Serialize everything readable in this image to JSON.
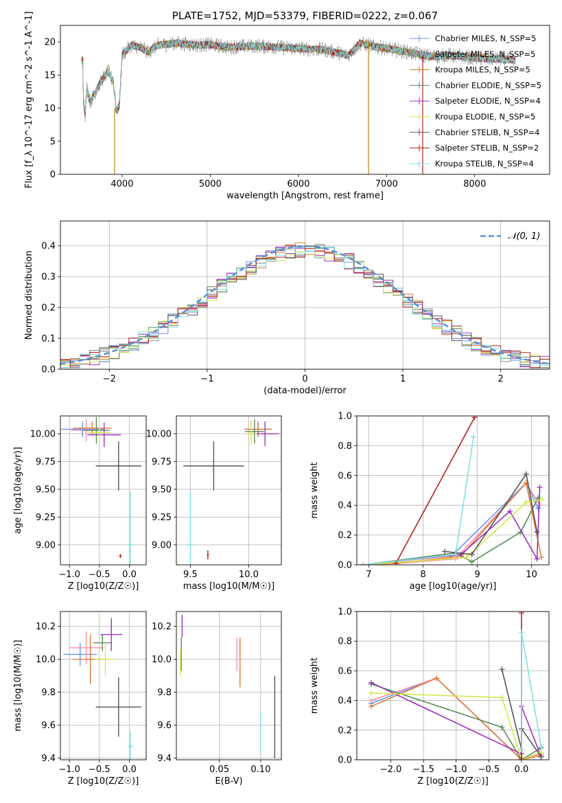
{
  "chart_data": [
    {
      "type": "line",
      "title": "PLATE=1752, MJD=53379, FIBERID=0222, z=0.067",
      "xlabel": "wavelength [Angstrom, rest frame]",
      "ylabel": "Flux [f_λ 10^-17 erg cm^-2 s^-1 A^-1]",
      "xlim": [
        3300,
        8850
      ],
      "ylim": [
        0,
        22.5
      ],
      "xticks": [
        "4000",
        "5000",
        "6000",
        "7000",
        "8000"
      ],
      "yticks": [
        "0",
        "5",
        "10",
        "15",
        "20"
      ],
      "grid": false,
      "legend_position": "right",
      "series": [
        {
          "name": "Chabrier MILES, N_SSP=5",
          "color": "#6495ed"
        },
        {
          "name": "Salpeter MILES, N_SSP=5",
          "color": "#8b8b8b"
        },
        {
          "name": "Kroupa MILES, N_SSP=5",
          "color": "#b8860b"
        },
        {
          "name": "Chabrier ELODIE, N_SSP=5",
          "color": "#5a8a5a"
        },
        {
          "name": "Salpeter ELODIE, N_SSP=4",
          "color": "#9b30c0"
        },
        {
          "name": "Kroupa ELODIE, N_SSP=5",
          "color": "#d4e84a"
        },
        {
          "name": "Chabrier STELIB, N_SSP=4",
          "color": "#555555"
        },
        {
          "name": "Salpeter STELIB, N_SSP=2",
          "color": "#b22222"
        },
        {
          "name": "Kroupa STELIB, N_SSP=4",
          "color": "#7fdfe0"
        }
      ],
      "envelope": [
        {
          "x": 3560,
          "y": 11.5
        },
        {
          "x": 3580,
          "y": 9
        },
        {
          "x": 3600,
          "y": 13
        },
        {
          "x": 3640,
          "y": 11
        },
        {
          "x": 3700,
          "y": 12.5
        },
        {
          "x": 3760,
          "y": 14
        },
        {
          "x": 3840,
          "y": 15.5
        },
        {
          "x": 3900,
          "y": 14
        },
        {
          "x": 3935,
          "y": 9.5
        },
        {
          "x": 3970,
          "y": 10.5
        },
        {
          "x": 4000,
          "y": 18
        },
        {
          "x": 4100,
          "y": 19.5
        },
        {
          "x": 4200,
          "y": 19.2
        },
        {
          "x": 4300,
          "y": 18.5
        },
        {
          "x": 4400,
          "y": 19.5
        },
        {
          "x": 4600,
          "y": 19.8
        },
        {
          "x": 4860,
          "y": 19.5
        },
        {
          "x": 5000,
          "y": 19.6
        },
        {
          "x": 5200,
          "y": 19.2
        },
        {
          "x": 5500,
          "y": 19.4
        },
        {
          "x": 5800,
          "y": 19.2
        },
        {
          "x": 6000,
          "y": 19.0
        },
        {
          "x": 6300,
          "y": 18.8
        },
        {
          "x": 6563,
          "y": 18.0
        },
        {
          "x": 6700,
          "y": 19.8
        },
        {
          "x": 6900,
          "y": 19.2
        },
        {
          "x": 7100,
          "y": 18.8
        },
        {
          "x": 7300,
          "y": 18.3
        },
        {
          "x": 7500,
          "y": 17.8
        },
        {
          "x": 7700,
          "y": 18.0
        },
        {
          "x": 7900,
          "y": 17.7
        },
        {
          "x": 8100,
          "y": 17.5
        },
        {
          "x": 8300,
          "y": 17.4
        },
        {
          "x": 8450,
          "y": 17.2
        }
      ],
      "spikes": [
        {
          "x": 3915,
          "ymin": 0,
          "ymax": 10,
          "color": "#b8860b"
        },
        {
          "x": 6795,
          "ymin": 0,
          "ymax": 20,
          "color": "#b8860b"
        },
        {
          "x": 7410,
          "ymin": 0,
          "ymax": 18,
          "color": "#b22222"
        }
      ]
    },
    {
      "type": "line",
      "xlabel": "(data-model)/error",
      "ylabel": "Normed distribution",
      "xlim": [
        -2.5,
        2.5
      ],
      "ylim": [
        0,
        0.48
      ],
      "xticks": [
        "−2",
        "−1",
        "0",
        "1",
        "2"
      ],
      "yticks": [
        "0.0",
        "0.1",
        "0.2",
        "0.3",
        "0.4"
      ],
      "grid": true,
      "legend": "𝒩(0, 1)",
      "legend_position": "top-right",
      "reference_curve": {
        "name": "𝒩(0, 1)",
        "mean": 0,
        "sigma": 1,
        "color": "#5b8bd9"
      },
      "bin_width": 0.1,
      "histogram_colors": [
        "#6495ed",
        "#8b8b8b",
        "#e07a3a",
        "#5a8a5a",
        "#9b30c0",
        "#d4e84a",
        "#555555",
        "#b22222",
        "#7fdfe0"
      ]
    },
    {
      "type": "scatter",
      "xlabel": "Z [log10(Z/Z☉)]",
      "ylabel": "age  [log10(age/yr)]",
      "xlim": [
        -1.15,
        0.28
      ],
      "ylim": [
        8.82,
        10.16
      ],
      "xticks": [
        "−1.0",
        "−0.5",
        "0.0"
      ],
      "yticks": [
        "9.00",
        "9.25",
        "9.50",
        "9.75",
        "10.00"
      ],
      "grid": true,
      "errorbars": [
        {
          "x": -0.78,
          "xerr": 0.35,
          "y": 10.04,
          "yerr": 0.07,
          "color": "#6495ed"
        },
        {
          "x": -0.72,
          "xerr": 0.25,
          "y": 10.03,
          "yerr": 0.1,
          "color": "#ff8fa8"
        },
        {
          "x": -0.62,
          "xerr": 0.32,
          "y": 10.05,
          "yerr": 0.06,
          "color": "#e07a3a"
        },
        {
          "x": -0.55,
          "xerr": 0.22,
          "y": 10.03,
          "yerr": 0.12,
          "color": "#5a8a5a"
        },
        {
          "x": -0.42,
          "xerr": 0.28,
          "y": 9.99,
          "yerr": 0.11,
          "color": "#9b30c0"
        },
        {
          "x": -0.5,
          "xerr": 0.18,
          "y": 10.01,
          "yerr": 0.08,
          "color": "#d4e84a"
        },
        {
          "x": -0.18,
          "xerr": 0.38,
          "y": 9.71,
          "yerr": 0.22,
          "color": "#555555"
        },
        {
          "x": -0.15,
          "xerr": 0.02,
          "y": 8.9,
          "yerr": 0.02,
          "color": "#b22222"
        },
        {
          "x": 0.02,
          "xerr": 0.05,
          "y": 9.0,
          "yerr": 0.48,
          "color": "#7fdfe0"
        }
      ]
    },
    {
      "type": "scatter",
      "xlabel": "mass [log10(M/M☉)]",
      "ylabel": "",
      "xlim": [
        9.38,
        10.28
      ],
      "ylim": [
        8.82,
        10.16
      ],
      "xticks": [
        "9.5",
        "10.0"
      ],
      "yticks": [
        "9.00",
        "9.25",
        "9.50",
        "9.75",
        "10.00"
      ],
      "grid": true,
      "errorbars": [
        {
          "x": 10.08,
          "xerr": 0.1,
          "y": 10.04,
          "yerr": 0.07,
          "color": "#6495ed"
        },
        {
          "x": 10.02,
          "xerr": 0.05,
          "y": 10.02,
          "yerr": 0.1,
          "color": "#ff8fa8"
        },
        {
          "x": 10.08,
          "xerr": 0.12,
          "y": 10.04,
          "yerr": 0.06,
          "color": "#e07a3a"
        },
        {
          "x": 10.05,
          "xerr": 0.08,
          "y": 10.02,
          "yerr": 0.11,
          "color": "#5a8a5a"
        },
        {
          "x": 10.14,
          "xerr": 0.12,
          "y": 10.0,
          "yerr": 0.11,
          "color": "#9b30c0"
        },
        {
          "x": 10.02,
          "xerr": 0.05,
          "y": 10.0,
          "yerr": 0.1,
          "color": "#d4e84a"
        },
        {
          "x": 9.7,
          "xerr": 0.26,
          "y": 9.71,
          "yerr": 0.22,
          "color": "#555555"
        },
        {
          "x": 9.65,
          "xerr": 0.01,
          "y": 8.91,
          "yerr": 0.04,
          "color": "#b22222"
        },
        {
          "x": 9.5,
          "xerr": 0.03,
          "y": 9.0,
          "yerr": 0.48,
          "color": "#7fdfe0"
        }
      ]
    },
    {
      "type": "line",
      "xlabel": "age  [log10(age/yr)]",
      "ylabel": "mass weight",
      "xlim": [
        6.78,
        10.32
      ],
      "ylim": [
        0,
        1.0
      ],
      "xticks": [
        "7",
        "8",
        "9",
        "10"
      ],
      "yticks": [
        "0.0",
        "0.2",
        "0.4",
        "0.6",
        "0.8",
        "1.0"
      ],
      "grid": true,
      "series": [
        {
          "color": "#6495ed",
          "x": [
            6.9,
            7.5,
            8.5,
            9.9,
            10.12
          ],
          "y": [
            0.0,
            0.01,
            0.05,
            0.55,
            0.38
          ]
        },
        {
          "color": "#ff8fa8",
          "x": [
            6.9,
            7.5,
            8.6,
            9.9,
            10.15
          ],
          "y": [
            0.0,
            0.01,
            0.04,
            0.55,
            0.4
          ]
        },
        {
          "color": "#e07a3a",
          "x": [
            6.9,
            7.5,
            8.7,
            9.9,
            10.18
          ],
          "y": [
            0.0,
            0.01,
            0.06,
            0.55,
            0.05
          ]
        },
        {
          "color": "#5a8a5a",
          "x": [
            6.9,
            8.6,
            8.9,
            9.8,
            10.12
          ],
          "y": [
            0.0,
            0.08,
            0.02,
            0.22,
            0.45
          ]
        },
        {
          "color": "#9b30c0",
          "x": [
            6.9,
            8.7,
            9.6,
            10.1,
            10.15
          ],
          "y": [
            0.0,
            0.07,
            0.36,
            0.04,
            0.52
          ]
        },
        {
          "color": "#d4e84a",
          "x": [
            6.9,
            8.8,
            9.9,
            10.2
          ],
          "y": [
            0.0,
            0.05,
            0.42,
            0.44
          ]
        },
        {
          "color": "#555555",
          "x": [
            8.4,
            8.9,
            9.9,
            10.1
          ],
          "y": [
            0.09,
            0.07,
            0.61,
            0.22
          ]
        },
        {
          "color": "#b22222",
          "x": [
            7.5,
            8.95
          ],
          "y": [
            0.01,
            0.99
          ]
        },
        {
          "color": "#7fdfe0",
          "x": [
            6.9,
            8.6,
            8.93
          ],
          "y": [
            0.0,
            0.07,
            0.86
          ]
        }
      ]
    },
    {
      "type": "scatter",
      "xlabel": "Z [log10(Z/Z☉)]",
      "ylabel": "mass [log10(M/M☉)]",
      "xlim": [
        -1.15,
        0.28
      ],
      "ylim": [
        9.39,
        10.29
      ],
      "xticks": [
        "−1.0",
        "−0.5",
        "0.0"
      ],
      "yticks": [
        "9.4",
        "9.6",
        "9.8",
        "10.0",
        "10.2"
      ],
      "grid": true,
      "errorbars": [
        {
          "x": -0.82,
          "xerr": 0.28,
          "y": 10.03,
          "yerr": 0.07,
          "color": "#6495ed"
        },
        {
          "x": -0.72,
          "xerr": 0.28,
          "y": 10.07,
          "yerr": 0.1,
          "color": "#ff8fa8"
        },
        {
          "x": -0.65,
          "xerr": 0.3,
          "y": 10.0,
          "yerr": 0.15,
          "color": "#e07a3a"
        },
        {
          "x": -0.45,
          "xerr": 0.15,
          "y": 10.1,
          "yerr": 0.05,
          "color": "#5a8a5a"
        },
        {
          "x": -0.3,
          "xerr": 0.18,
          "y": 10.15,
          "yerr": 0.1,
          "color": "#9b30c0"
        },
        {
          "x": -0.4,
          "xerr": 0.18,
          "y": 10.0,
          "yerr": 0.1,
          "color": "#d4e84a"
        },
        {
          "x": -0.18,
          "xerr": 0.38,
          "y": 9.71,
          "yerr": 0.18,
          "color": "#555555"
        },
        {
          "x": 0.02,
          "xerr": 0.05,
          "y": 9.47,
          "yerr": 0.09,
          "color": "#7fdfe0"
        }
      ]
    },
    {
      "type": "scatter",
      "xlabel": "E(B-V)",
      "ylabel": "",
      "xlim": [
        -0.002,
        0.125
      ],
      "ylim": [
        9.39,
        10.29
      ],
      "xticks": [
        "0.05",
        "0.10"
      ],
      "yticks": [
        "9.4",
        "9.6",
        "9.8",
        "10.0",
        "10.2"
      ],
      "grid": true,
      "errorbars": [
        {
          "x": 0.004,
          "xerr": 0.0,
          "y": 10.03,
          "yerr": 0.1,
          "color": "#5a8a5a"
        },
        {
          "x": 0.005,
          "xerr": 0.0,
          "y": 10.2,
          "yerr": 0.07,
          "color": "#9b30c0"
        },
        {
          "x": 0.003,
          "xerr": 0.0,
          "y": 9.98,
          "yerr": 0.08,
          "color": "#d4e84a"
        },
        {
          "x": 0.071,
          "xerr": 0.0,
          "y": 10.03,
          "yerr": 0.1,
          "color": "#ff8fa8"
        },
        {
          "x": 0.075,
          "xerr": 0.0,
          "y": 9.98,
          "yerr": 0.15,
          "color": "#e07a3a"
        },
        {
          "x": 0.1,
          "xerr": 0.0,
          "y": 9.55,
          "yerr": 0.12,
          "color": "#7fdfe0"
        },
        {
          "x": 0.117,
          "xerr": 0.0,
          "y": 9.65,
          "yerr": 0.25,
          "color": "#555555"
        }
      ]
    },
    {
      "type": "line",
      "xlabel": "Z [log10(Z/Z☉)]",
      "ylabel": "mass weight",
      "xlim": [
        -2.52,
        0.42
      ],
      "ylim": [
        0,
        1.0
      ],
      "xticks": [
        "−2.0",
        "−1.5",
        "−1.0",
        "−0.5",
        "0.0"
      ],
      "yticks": [
        "0.0",
        "0.2",
        "0.4",
        "0.6",
        "0.8",
        "1.0"
      ],
      "grid": true,
      "series": [
        {
          "color": "#6495ed",
          "x": [
            -2.3,
            -1.3,
            0.0,
            0.3
          ],
          "y": [
            0.38,
            0.55,
            0.0,
            0.05
          ]
        },
        {
          "color": "#ff8fa8",
          "x": [
            -2.3,
            -1.3,
            0.0,
            0.3
          ],
          "y": [
            0.4,
            0.55,
            0.0,
            0.04
          ]
        },
        {
          "color": "#e07a3a",
          "x": [
            -2.3,
            -1.3,
            0.0,
            0.3
          ],
          "y": [
            0.36,
            0.55,
            0.0,
            0.03
          ]
        },
        {
          "color": "#5a8a5a",
          "x": [
            -2.3,
            -0.3,
            0.0,
            0.3
          ],
          "y": [
            0.51,
            0.22,
            0.0,
            0.08
          ]
        },
        {
          "color": "#9b30c0",
          "x": [
            -2.3,
            0.0,
            0.0,
            0.3
          ],
          "y": [
            0.52,
            0.04,
            0.36,
            0.02
          ]
        },
        {
          "color": "#d4e84a",
          "x": [
            -2.3,
            -0.3,
            0.0,
            0.3
          ],
          "y": [
            0.45,
            0.42,
            0.0,
            0.05
          ]
        },
        {
          "color": "#555555",
          "x": [
            -0.3,
            0.0,
            0.0,
            0.3
          ],
          "y": [
            0.61,
            0.07,
            0.21,
            0.02
          ]
        },
        {
          "color": "#b22222",
          "x": [
            0.0,
            0.0
          ],
          "y": [
            0.01,
            0.99
          ]
        },
        {
          "color": "#7fdfe0",
          "x": [
            0.0,
            0.0,
            0.3
          ],
          "y": [
            0.07,
            0.86,
            0.09
          ]
        }
      ]
    }
  ]
}
